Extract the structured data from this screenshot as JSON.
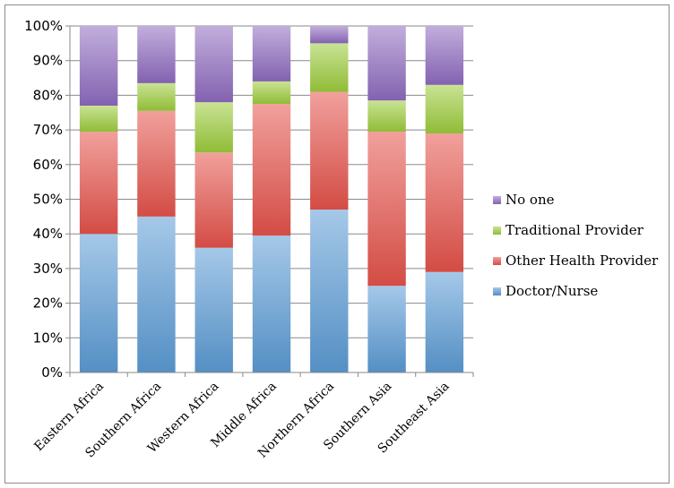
{
  "chart_data": {
    "type": "bar",
    "stacked": true,
    "categories": [
      "Eastern Africa",
      "Southern Africa",
      "Western Africa",
      "Middle Africa",
      "Northern Africa",
      "Southern Asia",
      "Southeast Asia"
    ],
    "series": [
      {
        "name": "Doctor/Nurse",
        "color": "#5b9bd5",
        "values": [
          40,
          45,
          36,
          39.5,
          47,
          25,
          29
        ]
      },
      {
        "name": "Other Health Provider",
        "color": "#e5534b",
        "values": [
          29.5,
          30.5,
          27.5,
          38,
          34,
          44.5,
          40
        ]
      },
      {
        "name": "Traditional Provider",
        "color": "#9ccc3c",
        "values": [
          7.5,
          8,
          14.5,
          6.5,
          14,
          9,
          14
        ]
      },
      {
        "name": "No one",
        "color": "#8e6bbf",
        "values": [
          23,
          16.5,
          22,
          16,
          5,
          21.5,
          17
        ]
      }
    ],
    "ylim": [
      0,
      100
    ],
    "yticks": [
      "0%",
      "10%",
      "20%",
      "30%",
      "40%",
      "50%",
      "60%",
      "70%",
      "80%",
      "90%",
      "100%"
    ],
    "legend_position": "right",
    "grid": true
  }
}
